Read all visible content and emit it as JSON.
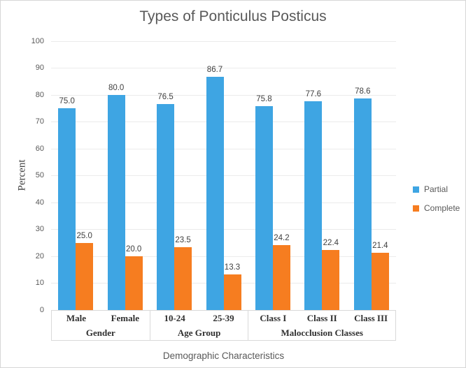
{
  "chart_data": {
    "type": "bar",
    "title": "Types of Ponticulus Posticus",
    "xlabel": "Demographic Characteristics",
    "ylabel": "Percent",
    "ylim": [
      0,
      100
    ],
    "ytick_step": 10,
    "grid": true,
    "legend_position": "right",
    "data_labels": true,
    "categories": [
      "Male",
      "Female",
      "10-24",
      "25-39",
      "Class I",
      "Class II",
      "Class III"
    ],
    "groups": [
      {
        "label": "Gender",
        "categories": [
          "Male",
          "Female"
        ]
      },
      {
        "label": "Age Group",
        "categories": [
          "10-24",
          "25-39"
        ]
      },
      {
        "label": "Malocclusion Classes",
        "categories": [
          "Class I",
          "Class II",
          "Class III"
        ]
      }
    ],
    "series": [
      {
        "name": "Partial",
        "color": "#3ea5e3",
        "values": [
          75.0,
          80.0,
          76.5,
          86.7,
          75.8,
          77.6,
          78.6
        ]
      },
      {
        "name": "Complete",
        "color": "#f67d20",
        "values": [
          25.0,
          20.0,
          23.5,
          13.3,
          24.2,
          22.4,
          21.4
        ]
      }
    ]
  }
}
